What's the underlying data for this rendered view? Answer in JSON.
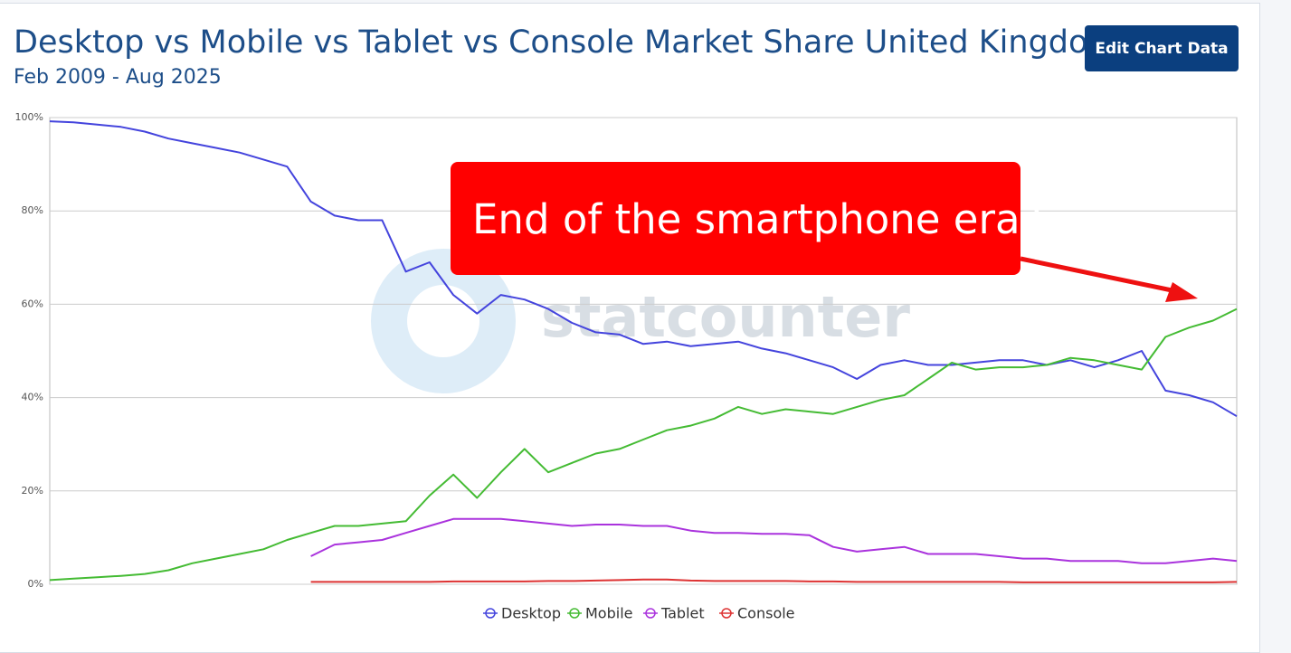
{
  "chart_data": {
    "type": "line",
    "title": "Desktop vs Mobile vs Tablet vs Console Market Share United Kingdom",
    "subtitle": "Feb 2009 - Aug 2025",
    "button": "Edit Chart Data",
    "annotation": "End of the smartphone era?",
    "watermark": "statcounter",
    "ylim": [
      0,
      100
    ],
    "yticks": [
      {
        "value": 0,
        "label": "0%"
      },
      {
        "value": 20,
        "label": "20%"
      },
      {
        "value": 40,
        "label": "40%"
      },
      {
        "value": 60,
        "label": "60%"
      },
      {
        "value": 80,
        "label": "80%"
      },
      {
        "value": 100,
        "label": "100%"
      }
    ],
    "grid": true,
    "legend": "bottom",
    "series": [
      {
        "name": "Desktop",
        "color": "#4444dd",
        "values": [
          99.2,
          99,
          98.5,
          98,
          97,
          95.5,
          94.5,
          93.5,
          92.5,
          91,
          89.5,
          82,
          79,
          78,
          78,
          67,
          69,
          62,
          58,
          62,
          61,
          59,
          56,
          54,
          53.5,
          51.5,
          52,
          51,
          51.5,
          52,
          50.5,
          49.5,
          48,
          46.5,
          44,
          47,
          48,
          47,
          47,
          47.5,
          48,
          48,
          47,
          48,
          46.5,
          48,
          50,
          41.5,
          40.5,
          39,
          36
        ]
      },
      {
        "name": "Mobile",
        "color": "#44bb33",
        "values": [
          0.9,
          1.2,
          1.5,
          1.8,
          2.2,
          3,
          4.5,
          5.5,
          6.5,
          7.5,
          9.5,
          11,
          12.5,
          12.5,
          13,
          13.5,
          19,
          23.5,
          18.5,
          24,
          29,
          24,
          26,
          28,
          29,
          31,
          33,
          34,
          35.5,
          38,
          36.5,
          37.5,
          37,
          36.5,
          38,
          39.5,
          40.5,
          44,
          47.5,
          46,
          46.5,
          46.5,
          47,
          48.5,
          48,
          47,
          46,
          53,
          55,
          56.5,
          59
        ]
      },
      {
        "name": "Tablet",
        "color": "#aa33dd",
        "values": [
          null,
          null,
          null,
          null,
          null,
          null,
          null,
          null,
          null,
          null,
          null,
          6,
          8.5,
          9,
          9.5,
          11,
          12.5,
          14,
          14,
          14,
          13.5,
          13,
          12.5,
          12.8,
          12.8,
          12.5,
          12.5,
          11.5,
          11,
          11,
          10.8,
          10.8,
          10.5,
          8,
          7,
          7.5,
          8,
          6.5,
          6.5,
          6.5,
          6,
          5.5,
          5.5,
          5,
          5,
          5,
          4.5,
          4.5,
          5,
          5.5,
          5
        ]
      },
      {
        "name": "Console",
        "color": "#dd3333",
        "values": [
          null,
          null,
          null,
          null,
          null,
          null,
          null,
          null,
          null,
          null,
          null,
          0.5,
          0.5,
          0.5,
          0.5,
          0.5,
          0.5,
          0.6,
          0.6,
          0.6,
          0.6,
          0.7,
          0.7,
          0.8,
          0.9,
          1,
          1,
          0.8,
          0.7,
          0.7,
          0.7,
          0.7,
          0.6,
          0.6,
          0.5,
          0.5,
          0.5,
          0.5,
          0.5,
          0.5,
          0.5,
          0.4,
          0.4,
          0.4,
          0.4,
          0.4,
          0.4,
          0.4,
          0.4,
          0.4,
          0.5
        ]
      }
    ]
  }
}
